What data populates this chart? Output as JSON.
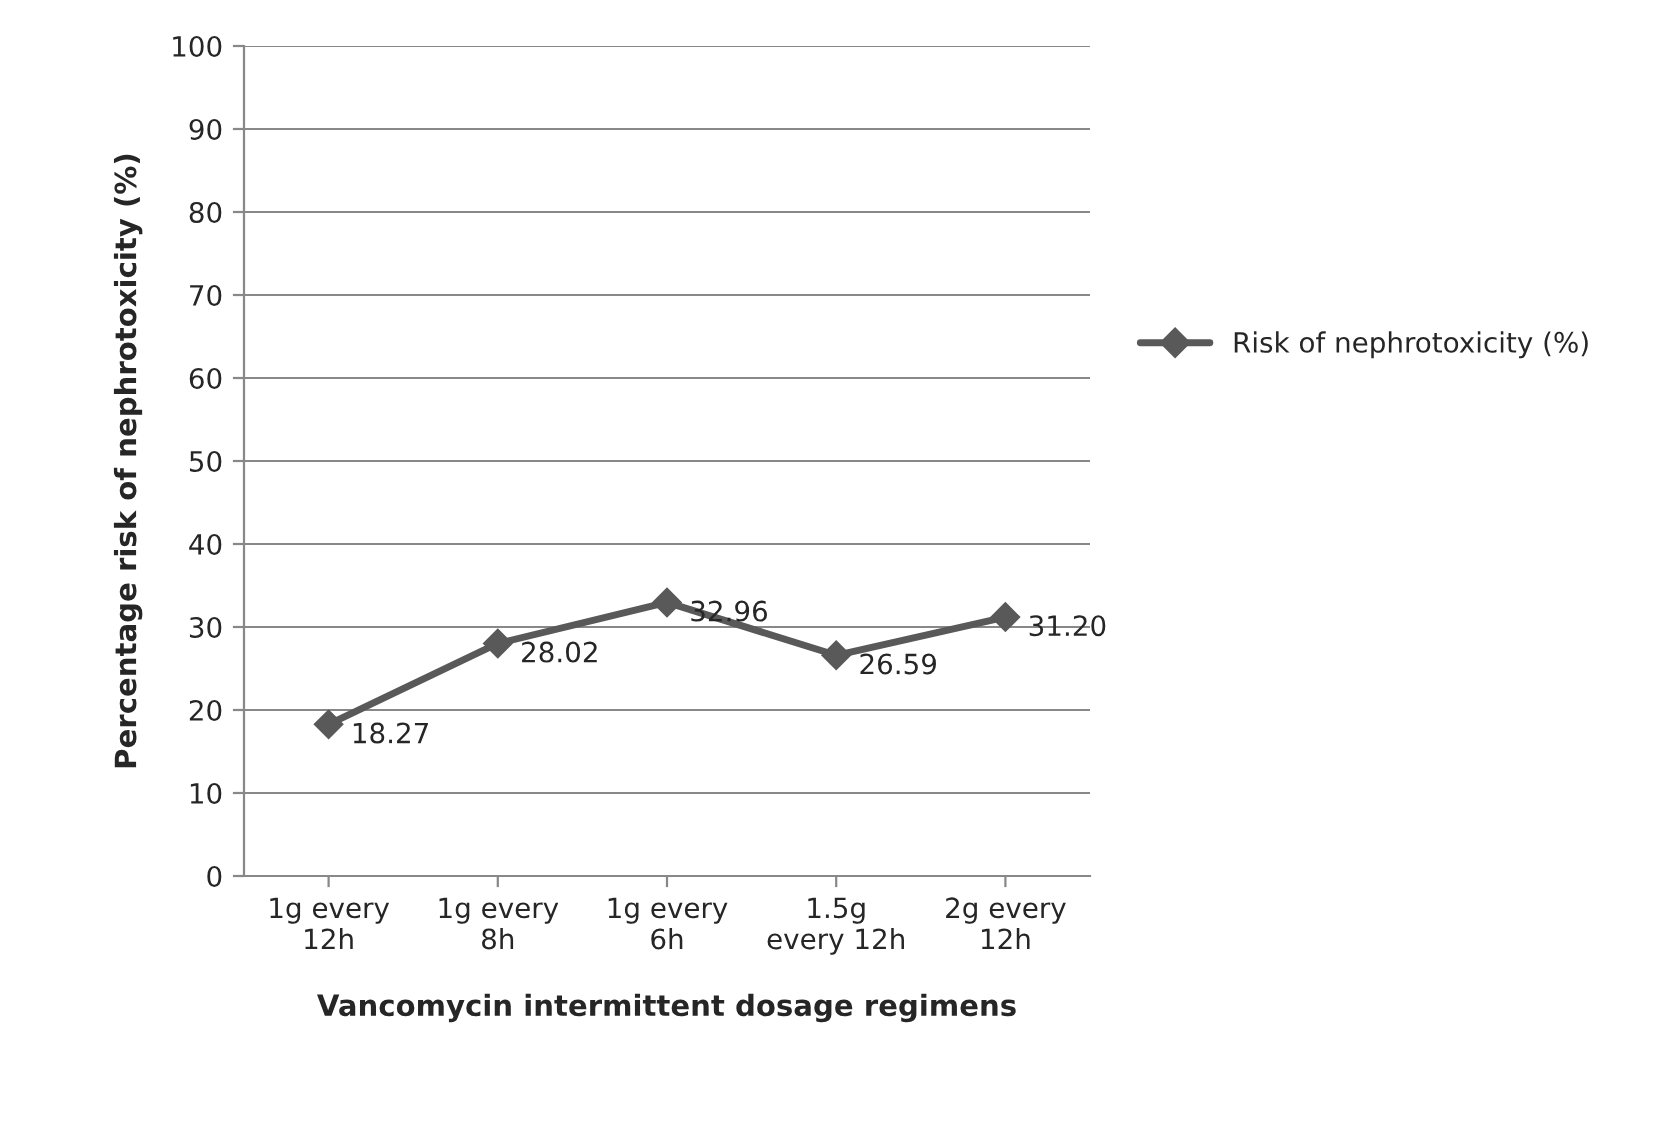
{
  "chart_data": {
    "type": "line",
    "xlabel": "Vancomycin intermittent dosage regimens",
    "ylabel": "Percentage risk of nephrotoxicity (%)",
    "categories": [
      "1g every\n12h",
      "1g every\n8h",
      "1g every\n6h",
      "1.5g\nevery 12h",
      "2g every\n12h"
    ],
    "series": [
      {
        "name": "Risk of nephrotoxicity (%)",
        "color": "#595959",
        "values": [
          18.27,
          28.02,
          32.96,
          26.59,
          31.2
        ],
        "value_labels": [
          "18.27",
          "28.02",
          "32.96",
          "26.59",
          "31.20"
        ]
      }
    ],
    "ylim": [
      0,
      100
    ],
    "yticks": [
      0,
      10,
      20,
      30,
      40,
      50,
      60,
      70,
      80,
      90,
      100
    ],
    "grid": "y",
    "legend": "right",
    "marker": "diamond",
    "line_style": "solid"
  }
}
